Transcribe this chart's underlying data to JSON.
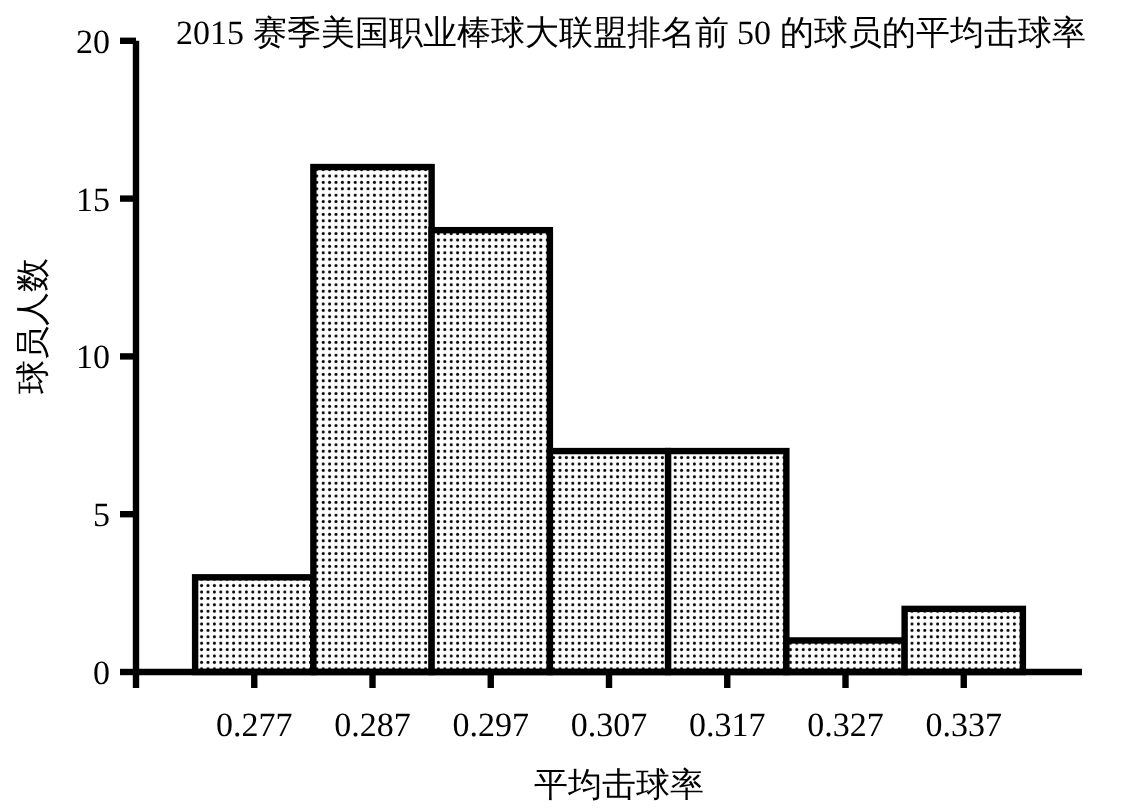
{
  "chart_data": {
    "type": "histogram",
    "title": "2015 赛季美国职业棒球大联盟排名前 50 的球员的平均击球率",
    "xlabel": "平均击球率",
    "ylabel": "球员人数",
    "bins": [
      0.272,
      0.282,
      0.292,
      0.302,
      0.312,
      0.322,
      0.332,
      0.342
    ],
    "values": [
      3,
      16,
      14,
      7,
      7,
      1,
      2
    ],
    "color": "#000000",
    "xlim": [
      0.267,
      0.347
    ],
    "xticks": [
      {
        "value": 0.267,
        "label": null
      },
      0.277,
      0.287,
      0.297,
      0.307,
      0.317,
      0.327,
      0.337
    ],
    "ylim": [
      0,
      20
    ],
    "yticks": [
      0,
      5,
      10,
      15,
      20
    ],
    "grid": false
  }
}
